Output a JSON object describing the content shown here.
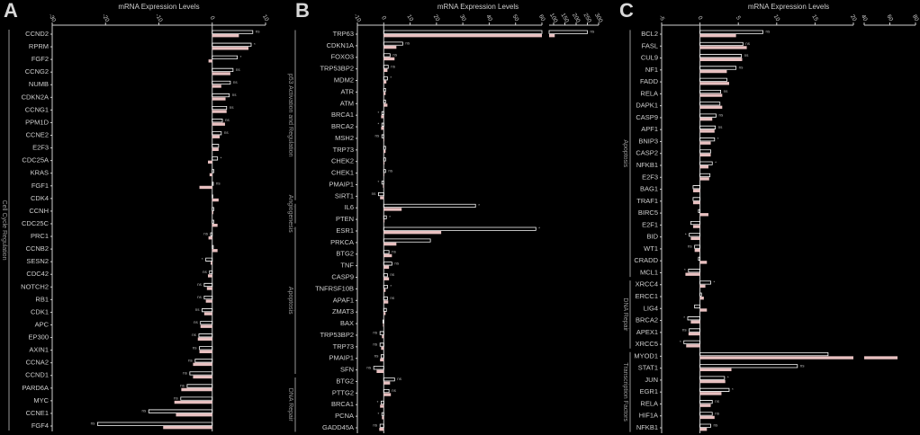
{
  "chart_data": [
    {
      "type": "bar",
      "orientation": "horizontal",
      "panel": "A",
      "title": "mRNA Expression Levels",
      "categories": [
        "CCND2",
        "RPRM",
        "FGF2",
        "CCNG2",
        "NUMB",
        "CDKN2A",
        "CCNG1",
        "PPM1D",
        "CCNE2",
        "E2F3",
        "CDC25A",
        "KRAS",
        "FGF1",
        "CDK4",
        "CCNH",
        "CDC25C",
        "PRC1",
        "CCNB2",
        "SESN2",
        "CDC42",
        "NOTCH2",
        "RB1",
        "CDK1",
        "APC",
        "EP300",
        "AXIN1",
        "CCNA2",
        "CCND1",
        "PARD6A",
        "MYC",
        "CCNE1",
        "FGF4"
      ],
      "groups": [
        {
          "label": "Cell Cycle Regulation",
          "count": 32
        }
      ],
      "series": [
        {
          "color": "#ffffff",
          "style": "outline",
          "values": [
            7.6,
            7.3,
            4.7,
            3.9,
            3.4,
            3.2,
            2.7,
            1.9,
            1.7,
            1.2,
            1,
            0.3,
            0.2,
            0.1,
            0.3,
            0.3,
            -0.3,
            0.2,
            -1.2,
            -0.5,
            -1.5,
            -1.5,
            -1.9,
            -2.2,
            -2.5,
            -2.4,
            -3.2,
            -4.2,
            -4.7,
            -5.9,
            -11.9,
            -21.5
          ]
        },
        {
          "color": "#e8c0c0",
          "style": "fill",
          "values": [
            5,
            6.8,
            -0.7,
            3.4,
            1.7,
            2.5,
            2.7,
            2.4,
            1.4,
            1.2,
            -0.8,
            -0.5,
            -2.4,
            1.2,
            0.2,
            1,
            -0.7,
            1,
            -0.3,
            -0.8,
            -1,
            -1.2,
            -1.5,
            -2.2,
            -2.7,
            -2.4,
            -3.6,
            -3.6,
            -5.8,
            -7.1,
            -6.8,
            -9.2
          ]
        }
      ],
      "annotations": [
        "ns",
        "*",
        "*",
        "ns",
        "ns",
        "ns",
        "ns",
        "ns",
        "ns",
        null,
        "*",
        null,
        "ns",
        null,
        null,
        null,
        "ns",
        null,
        "*",
        "ns",
        "ns",
        "ns",
        "ns",
        "ns",
        "ns",
        "ns",
        "ns",
        "ns",
        "ns",
        "ns",
        "ns",
        "ns"
      ],
      "xlim": [
        -30,
        10
      ],
      "xticks": [
        -30,
        -20,
        -10,
        0,
        10
      ]
    },
    {
      "type": "bar",
      "orientation": "horizontal",
      "panel": "B",
      "title": "mRNA Expression Levels",
      "categories": [
        "TRP63",
        "CDKN1A",
        "FOXO3",
        "TRP53BP2",
        "MDM2",
        "ATR",
        "ATM",
        "BRCA1",
        "BRCA2",
        "MSH2",
        "TRP73",
        "CHEK2",
        "CHEK1",
        "PMAIP1",
        "SIRT1",
        "IL6",
        "PTEN",
        "ESR1",
        "PRKCA",
        "BTG2",
        "TNF",
        "CASP9",
        "TNFRSF10B",
        "APAF1",
        "ZMAT3",
        "BAX",
        "TRP53BP2",
        "TRP73",
        "PMAIP1",
        "SFN",
        "BTG2",
        "PTTG2",
        "BRCA1",
        "PCNA",
        "GADD45A"
      ],
      "groups": [
        {
          "label": "p53 Activation and Regulation",
          "count": 15
        },
        {
          "label": "Angiogenesis",
          "count": 2
        },
        {
          "label": "Apoptosis",
          "count": 13
        },
        {
          "label": "DNA Repair",
          "count": 5
        }
      ],
      "series": [
        {
          "color": "#ffffff",
          "style": "outline",
          "values": [
            250,
            7.2,
            2.4,
            1.7,
            1.4,
            0.7,
            0.7,
            -0.7,
            -0.7,
            -0.7,
            0.7,
            0.7,
            0.7,
            -0.7,
            -2,
            34.8,
            1,
            57.7,
            17.7,
            2,
            3.1,
            1.4,
            1.4,
            1.4,
            1,
            -0.3,
            -1.4,
            -1.4,
            -1,
            -3.8,
            4.1,
            2,
            -1,
            -0.7,
            -1.4
          ]
        },
        {
          "color": "#e8c0c0",
          "style": "fill",
          "values": [
            105,
            4.8,
            4.1,
            1.4,
            1,
            0.7,
            1.4,
            -1,
            -1,
            0.2,
            0.7,
            0.3,
            0.2,
            -0.3,
            -1.4,
            6.8,
            0.3,
            21.8,
            4.8,
            3.1,
            2,
            2,
            0.7,
            1.7,
            0.7,
            -0.3,
            -0.7,
            -1,
            -1.4,
            -2.7,
            2.4,
            2.7,
            -1.4,
            -0.7,
            -1.7
          ]
        }
      ],
      "annotations": [
        "ns",
        "ns",
        "ns",
        "ns",
        "*",
        null,
        null,
        "*",
        "*",
        "ns",
        null,
        null,
        "ns",
        "*",
        "ns",
        "*",
        "*",
        "*",
        null,
        "ns",
        "ns",
        "ns",
        "*",
        "ns",
        null,
        null,
        "ns",
        "ns",
        "ns",
        "ns",
        "ns",
        "ns",
        "*",
        "*",
        "ns"
      ],
      "xlim": [
        -10,
        60
      ],
      "xticks": [
        -10,
        0,
        10,
        20,
        30,
        40,
        50,
        60
      ],
      "x2lim": [
        80,
        300
      ],
      "x2ticks": [
        100,
        150,
        200,
        250,
        300
      ]
    },
    {
      "type": "bar",
      "orientation": "horizontal",
      "panel": "C",
      "title": "mRNA Expression Levels",
      "categories": [
        "BCL2",
        "FASL",
        "CUL9",
        "NF1",
        "FADD",
        "RELA",
        "DAPK1",
        "CASP9",
        "APF1",
        "BNIP3",
        "CASP2",
        "NFKB1",
        "E2F3",
        "BAG1",
        "TRAF1",
        "BIRC5",
        "E2F1",
        "BID",
        "WT1",
        "CRADD",
        "MCL1",
        "XRCC4",
        "ERCC1",
        "LIG4",
        "BRCA2",
        "APEX1",
        "XRCC5",
        "MYOD1",
        "STAT1",
        "JUN",
        "EGR1",
        "RELA",
        "HIF1A",
        "NFKB1"
      ],
      "groups": [
        {
          "label": "Apoptosis",
          "count": 21
        },
        {
          "label": "DNA Repair",
          "count": 6
        },
        {
          "label": "Transcription Factors",
          "count": 7
        }
      ],
      "series": [
        {
          "color": "#ffffff",
          "style": "outline",
          "values": [
            8.2,
            5.6,
            5.4,
            4.7,
            3.5,
            2.7,
            2.6,
            2.1,
            2,
            1.9,
            1.4,
            1.6,
            1.3,
            -0.9,
            -0.9,
            -0.2,
            -1.2,
            -1.4,
            -0.7,
            -0.2,
            -1.5,
            1.4,
            0.2,
            -0.7,
            -1.6,
            -1.4,
            -2.1,
            16.7,
            12.7,
            3.2,
            3.8,
            1.6,
            1.6,
            1.4
          ]
        },
        {
          "color": "#e8c0c0",
          "style": "fill",
          "values": [
            4.7,
            6.1,
            5.5,
            3.5,
            3.8,
            2.9,
            2.9,
            1.6,
            1.9,
            1.4,
            1.4,
            1.1,
            1.2,
            -0.9,
            -0.9,
            1.1,
            -0.9,
            -1.2,
            -0.7,
            0.9,
            -1.9,
            0.7,
            0.5,
            0.9,
            -1.2,
            -1.5,
            -1.8,
            66,
            4.1,
            3.3,
            2.8,
            1.4,
            1.9,
            0.9
          ]
        }
      ],
      "annotations": [
        "ns",
        "ns",
        "ns",
        "ns",
        null,
        "ns",
        null,
        "ns",
        "ns",
        "*",
        null,
        "*",
        null,
        null,
        null,
        null,
        null,
        "*",
        "ns",
        null,
        "*",
        "*",
        null,
        null,
        "*",
        "ns",
        "*",
        null,
        "ns",
        "*",
        "*",
        "ns",
        "ns",
        "ns"
      ],
      "xlim": [
        -5,
        20
      ],
      "xticks": [
        -5,
        0,
        5,
        10,
        15,
        20
      ],
      "x2lim": [
        40,
        80
      ],
      "x2ticks": [
        40,
        60,
        80
      ]
    }
  ]
}
